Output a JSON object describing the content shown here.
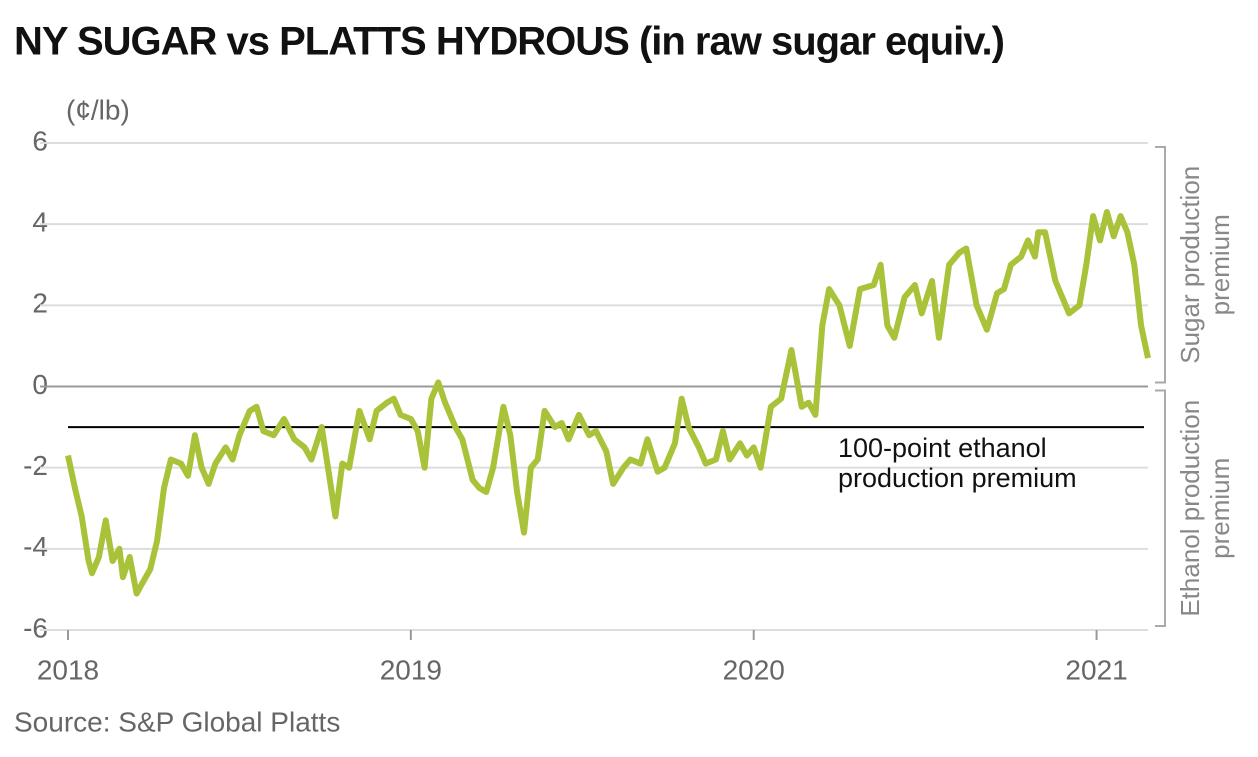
{
  "chart_data": {
    "type": "line",
    "title": "NY SUGAR vs PLATTS HYDROUS (in raw sugar equiv.)",
    "unit_label": "(¢/lb)",
    "source": "Source: S&P Global Platts",
    "xlim": [
      2018,
      2021.15
    ],
    "xticks": [
      2018,
      2019,
      2020,
      2021
    ],
    "ylim": [
      -6,
      6
    ],
    "yticks": [
      -6,
      -4,
      -2,
      0,
      2,
      4,
      6
    ],
    "grid": true,
    "reference_line": {
      "value": -1,
      "label_lines": [
        "100-point ethanol",
        "production premium"
      ]
    },
    "bands": [
      {
        "label_lines": [
          "Sugar production",
          "premium"
        ],
        "range": [
          0,
          6
        ]
      },
      {
        "label_lines": [
          "Ethanol production",
          "premium"
        ],
        "range": [
          -6,
          0
        ]
      }
    ],
    "series": [
      {
        "color": "#a8c23a",
        "x": [
          2018.0,
          2018.02,
          2018.04,
          2018.06,
          2018.07,
          2018.09,
          2018.11,
          2018.13,
          2018.15,
          2018.16,
          2018.18,
          2018.2,
          2018.22,
          2018.24,
          2018.26,
          2018.28,
          2018.3,
          2018.33,
          2018.35,
          2018.37,
          2018.39,
          2018.41,
          2018.43,
          2018.46,
          2018.48,
          2018.5,
          2018.53,
          2018.55,
          2018.57,
          2018.6,
          2018.63,
          2018.66,
          2018.69,
          2018.71,
          2018.74,
          2018.76,
          2018.78,
          2018.8,
          2018.82,
          2018.85,
          2018.88,
          2018.9,
          2018.93,
          2018.95,
          2018.97,
          2019.0,
          2019.02,
          2019.04,
          2019.06,
          2019.08,
          2019.1,
          2019.13,
          2019.15,
          2019.18,
          2019.2,
          2019.22,
          2019.24,
          2019.27,
          2019.29,
          2019.31,
          2019.33,
          2019.35,
          2019.37,
          2019.39,
          2019.42,
          2019.44,
          2019.46,
          2019.49,
          2019.52,
          2019.54,
          2019.57,
          2019.59,
          2019.62,
          2019.64,
          2019.67,
          2019.69,
          2019.72,
          2019.74,
          2019.77,
          2019.79,
          2019.81,
          2019.84,
          2019.86,
          2019.89,
          2019.91,
          2019.93,
          2019.96,
          2019.98,
          2020.0,
          2020.02,
          2020.05,
          2020.08,
          2020.11,
          2020.14,
          2020.16,
          2020.18,
          2020.2,
          2020.22,
          2020.25,
          2020.28,
          2020.31,
          2020.35,
          2020.37,
          2020.39,
          2020.41,
          2020.44,
          2020.47,
          2020.49,
          2020.52,
          2020.54,
          2020.57,
          2020.6,
          2020.62,
          2020.65,
          2020.68,
          2020.71,
          2020.73,
          2020.75,
          2020.78,
          2020.8,
          2020.82,
          2020.83,
          2020.85,
          2020.88,
          2020.92,
          2020.95,
          2020.97,
          2020.99,
          2021.01,
          2021.03,
          2021.05,
          2021.07,
          2021.09,
          2021.11,
          2021.13,
          2021.15
        ],
        "values": [
          -1.7,
          -2.5,
          -3.2,
          -4.3,
          -4.6,
          -4.2,
          -3.3,
          -4.3,
          -4.0,
          -4.7,
          -4.2,
          -5.1,
          -4.8,
          -4.5,
          -3.8,
          -2.5,
          -1.8,
          -1.9,
          -2.2,
          -1.2,
          -2.0,
          -2.4,
          -1.9,
          -1.5,
          -1.8,
          -1.2,
          -0.6,
          -0.5,
          -1.1,
          -1.2,
          -0.8,
          -1.3,
          -1.5,
          -1.8,
          -1.0,
          -2.1,
          -3.2,
          -1.9,
          -2.0,
          -0.6,
          -1.3,
          -0.6,
          -0.4,
          -0.3,
          -0.7,
          -0.8,
          -1.1,
          -2.0,
          -0.3,
          0.1,
          -0.4,
          -1.0,
          -1.3,
          -2.3,
          -2.5,
          -2.6,
          -2.0,
          -0.5,
          -1.2,
          -2.6,
          -3.6,
          -2.0,
          -1.8,
          -0.6,
          -1.0,
          -0.9,
          -1.3,
          -0.7,
          -1.2,
          -1.1,
          -1.6,
          -2.4,
          -2.0,
          -1.8,
          -1.9,
          -1.3,
          -2.1,
          -2.0,
          -1.4,
          -0.3,
          -1.0,
          -1.5,
          -1.9,
          -1.8,
          -1.1,
          -1.8,
          -1.4,
          -1.7,
          -1.5,
          -2.0,
          -0.5,
          -0.3,
          0.9,
          -0.5,
          -0.4,
          -0.7,
          1.5,
          2.4,
          2.0,
          1.0,
          2.4,
          2.5,
          3.0,
          1.5,
          1.2,
          2.2,
          2.5,
          1.8,
          2.6,
          1.2,
          3.0,
          3.3,
          3.4,
          2.0,
          1.4,
          2.3,
          2.4,
          3.0,
          3.2,
          3.6,
          3.2,
          3.8,
          3.8,
          2.6,
          1.8,
          2.0,
          3.0,
          4.2,
          3.6,
          4.3,
          3.7,
          4.2,
          3.8,
          3.0,
          1.5,
          0.7
        ]
      }
    ]
  }
}
